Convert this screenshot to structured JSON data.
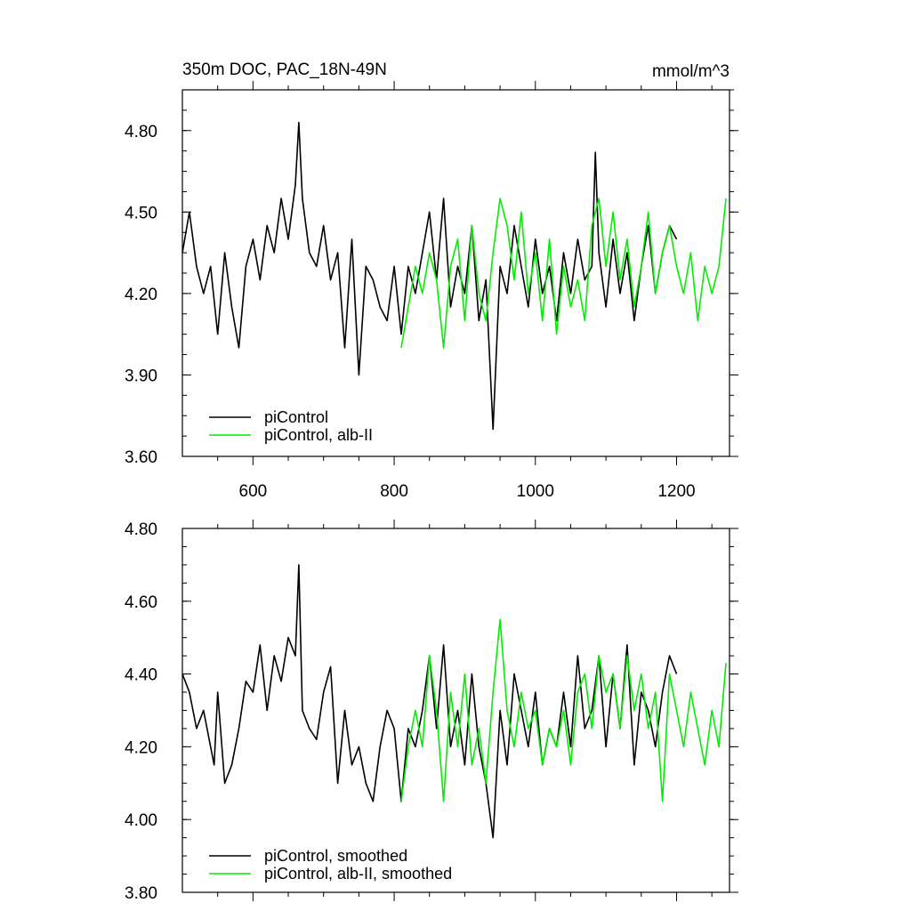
{
  "chart_data": [
    {
      "type": "line",
      "title": "350m DOC, PAC_18N-49N",
      "units": "mmol/m^3",
      "xlim": [
        500,
        1275
      ],
      "ylim": [
        3.6,
        4.95
      ],
      "x_ticks": [
        600,
        800,
        1000,
        1200
      ],
      "y_ticks": [
        3.6,
        3.9,
        4.2,
        4.5,
        4.8
      ],
      "x_tick_labels": [
        "600",
        "800",
        "1000",
        "1200"
      ],
      "y_tick_labels": [
        "3.60",
        "3.90",
        "4.20",
        "4.50",
        "4.80"
      ],
      "legend_position": "bottom-left",
      "series": [
        {
          "name": "piControl",
          "color": "#000000",
          "x": [
            500,
            510,
            520,
            530,
            540,
            550,
            560,
            570,
            580,
            590,
            600,
            610,
            620,
            630,
            640,
            650,
            660,
            665,
            670,
            680,
            690,
            700,
            710,
            720,
            730,
            740,
            750,
            760,
            770,
            780,
            790,
            800,
            810,
            820,
            830,
            840,
            850,
            860,
            870,
            880,
            890,
            900,
            910,
            920,
            930,
            940,
            950,
            960,
            970,
            980,
            990,
            1000,
            1010,
            1020,
            1030,
            1040,
            1050,
            1060,
            1070,
            1080,
            1085,
            1090,
            1100,
            1110,
            1120,
            1130,
            1140,
            1150,
            1160,
            1170,
            1180,
            1190,
            1200
          ],
          "y": [
            4.35,
            4.5,
            4.3,
            4.2,
            4.3,
            4.05,
            4.35,
            4.15,
            4.0,
            4.3,
            4.4,
            4.25,
            4.45,
            4.35,
            4.55,
            4.4,
            4.6,
            4.83,
            4.55,
            4.35,
            4.3,
            4.45,
            4.25,
            4.35,
            4.0,
            4.4,
            3.9,
            4.3,
            4.25,
            4.15,
            4.1,
            4.3,
            4.05,
            4.3,
            4.2,
            4.35,
            4.5,
            4.25,
            4.55,
            4.15,
            4.3,
            4.2,
            4.45,
            4.1,
            4.25,
            3.7,
            4.3,
            4.2,
            4.45,
            4.3,
            4.15,
            4.4,
            4.2,
            4.3,
            4.1,
            4.35,
            4.2,
            4.4,
            4.25,
            4.3,
            4.72,
            4.35,
            4.15,
            4.4,
            4.2,
            4.35,
            4.1,
            4.3,
            4.45,
            4.2,
            4.35,
            4.45,
            4.4
          ]
        },
        {
          "name": "piControl, alb-II",
          "color": "#00ee00",
          "x": [
            810,
            820,
            830,
            840,
            850,
            860,
            870,
            880,
            890,
            900,
            910,
            920,
            930,
            940,
            950,
            960,
            970,
            980,
            990,
            1000,
            1010,
            1020,
            1030,
            1040,
            1050,
            1060,
            1070,
            1080,
            1090,
            1100,
            1110,
            1120,
            1130,
            1140,
            1150,
            1160,
            1170,
            1180,
            1190,
            1200,
            1210,
            1220,
            1230,
            1240,
            1250,
            1260,
            1270
          ],
          "y": [
            4.0,
            4.15,
            4.3,
            4.2,
            4.35,
            4.25,
            4.0,
            4.3,
            4.4,
            4.1,
            4.45,
            4.2,
            4.1,
            4.35,
            4.55,
            4.45,
            4.25,
            4.5,
            4.2,
            4.35,
            4.1,
            4.4,
            4.05,
            4.3,
            4.15,
            4.25,
            4.1,
            4.45,
            4.55,
            4.3,
            4.5,
            4.25,
            4.4,
            4.15,
            4.3,
            4.5,
            4.2,
            4.35,
            4.45,
            4.3,
            4.2,
            4.35,
            4.1,
            4.3,
            4.2,
            4.3,
            4.55
          ]
        }
      ]
    },
    {
      "type": "line",
      "xlim": [
        500,
        1275
      ],
      "ylim": [
        3.8,
        4.8
      ],
      "x_ticks": [
        600,
        800,
        1000,
        1200
      ],
      "y_ticks": [
        3.8,
        4.0,
        4.2,
        4.4,
        4.6,
        4.8
      ],
      "y_tick_labels": [
        "3.80",
        "4.00",
        "4.20",
        "4.40",
        "4.60",
        "4.80"
      ],
      "legend_position": "bottom-left",
      "series": [
        {
          "name": "piControl, smoothed",
          "color": "#000000",
          "x": [
            500,
            510,
            520,
            530,
            540,
            545,
            550,
            560,
            570,
            580,
            590,
            600,
            610,
            620,
            630,
            640,
            650,
            660,
            665,
            670,
            680,
            690,
            700,
            710,
            720,
            730,
            740,
            750,
            760,
            770,
            780,
            790,
            800,
            810,
            820,
            830,
            840,
            850,
            860,
            870,
            880,
            890,
            900,
            910,
            920,
            930,
            940,
            950,
            960,
            970,
            980,
            990,
            1000,
            1010,
            1020,
            1030,
            1040,
            1050,
            1060,
            1070,
            1080,
            1090,
            1100,
            1110,
            1120,
            1130,
            1140,
            1150,
            1160,
            1170,
            1180,
            1190,
            1200
          ],
          "y": [
            4.4,
            4.35,
            4.25,
            4.3,
            4.2,
            4.15,
            4.35,
            4.1,
            4.15,
            4.25,
            4.38,
            4.35,
            4.48,
            4.3,
            4.45,
            4.38,
            4.5,
            4.45,
            4.7,
            4.3,
            4.25,
            4.22,
            4.35,
            4.42,
            4.1,
            4.3,
            4.15,
            4.2,
            4.1,
            4.05,
            4.2,
            4.3,
            4.25,
            4.05,
            4.25,
            4.2,
            4.3,
            4.45,
            4.25,
            4.48,
            4.2,
            4.3,
            4.15,
            4.4,
            4.2,
            4.1,
            3.95,
            4.3,
            4.15,
            4.4,
            4.3,
            4.2,
            4.35,
            4.15,
            4.25,
            4.2,
            4.35,
            4.2,
            4.45,
            4.25,
            4.3,
            4.45,
            4.2,
            4.4,
            4.25,
            4.48,
            4.15,
            4.35,
            4.3,
            4.2,
            4.35,
            4.45,
            4.4
          ]
        },
        {
          "name": "piControl, alb-II, smoothed",
          "color": "#00ee00",
          "x": [
            810,
            820,
            830,
            840,
            850,
            860,
            870,
            880,
            890,
            900,
            910,
            920,
            930,
            940,
            950,
            960,
            970,
            980,
            990,
            1000,
            1010,
            1020,
            1030,
            1040,
            1050,
            1060,
            1070,
            1080,
            1090,
            1100,
            1110,
            1120,
            1130,
            1140,
            1150,
            1160,
            1170,
            1180,
            1190,
            1200,
            1210,
            1220,
            1230,
            1240,
            1250,
            1260,
            1270
          ],
          "y": [
            4.05,
            4.2,
            4.3,
            4.2,
            4.45,
            4.3,
            4.05,
            4.35,
            4.2,
            4.4,
            4.15,
            4.25,
            4.1,
            4.35,
            4.55,
            4.3,
            4.2,
            4.35,
            4.25,
            4.3,
            4.15,
            4.25,
            4.2,
            4.3,
            4.15,
            4.35,
            4.4,
            4.25,
            4.45,
            4.35,
            4.4,
            4.25,
            4.45,
            4.3,
            4.4,
            4.25,
            4.35,
            4.05,
            4.4,
            4.3,
            4.2,
            4.35,
            4.25,
            4.15,
            4.3,
            4.2,
            4.43
          ]
        }
      ]
    }
  ]
}
